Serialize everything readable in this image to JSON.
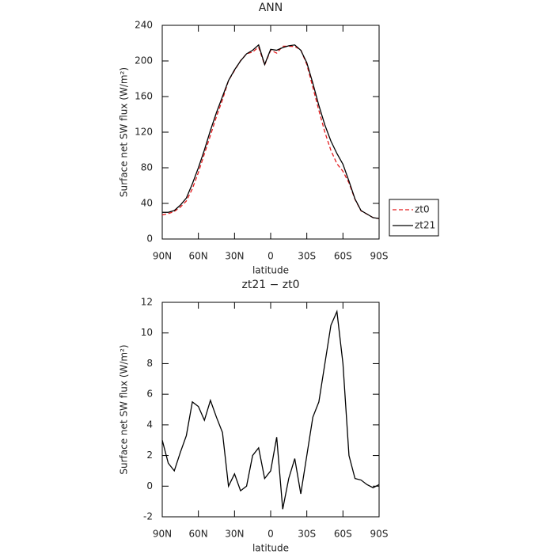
{
  "chart_data": [
    {
      "type": "line",
      "title": "ANN",
      "xlabel": "latitude",
      "ylabel": "Surface net SW flux (W/m²)",
      "x": [
        90,
        85,
        80,
        75,
        70,
        65,
        60,
        55,
        50,
        45,
        40,
        35,
        30,
        25,
        20,
        15,
        10,
        5,
        0,
        -5,
        -10,
        -15,
        -20,
        -25,
        -30,
        -35,
        -40,
        -45,
        -50,
        -55,
        -60,
        -65,
        -70,
        -75,
        -80,
        -85,
        -90
      ],
      "series": [
        {
          "name": "zt0",
          "color": "#e41a1c",
          "line_style": "dashed",
          "values": [
            27,
            28.5,
            31,
            35.8,
            42.7,
            56.5,
            74.8,
            95.7,
            116.4,
            137.5,
            156.5,
            178,
            189.2,
            200.3,
            208,
            210,
            215.5,
            195.5,
            212,
            208.8,
            216.5,
            216.5,
            216.2,
            212.5,
            196,
            170.5,
            144.5,
            120,
            99.5,
            84.6,
            76,
            63,
            44.5,
            31.6,
            27.9,
            24.1,
            22.9
          ]
        },
        {
          "name": "zt21",
          "color": "#000000",
          "line_style": "solid",
          "values": [
            30,
            30,
            32,
            38,
            46,
            62,
            80,
            100,
            122,
            142,
            160,
            178,
            190,
            200,
            208,
            212,
            218,
            196,
            213,
            212,
            215,
            217,
            218,
            212,
            198,
            175,
            150,
            128,
            110,
            96,
            84,
            65,
            45,
            32,
            28,
            24,
            23
          ]
        }
      ],
      "xlim": [
        90,
        -90
      ],
      "xticks": [
        {
          "value": 90,
          "label": "90N"
        },
        {
          "value": 60,
          "label": "60N"
        },
        {
          "value": 30,
          "label": "30N"
        },
        0,
        {
          "value": -30,
          "label": "30S"
        },
        {
          "value": -60,
          "label": "60S"
        },
        {
          "value": -90,
          "label": "90S"
        }
      ],
      "ylim": [
        0,
        240
      ],
      "yticks": [
        0,
        40,
        80,
        120,
        160,
        200,
        240
      ],
      "legend": "outside-right"
    },
    {
      "type": "line",
      "title": "zt21 − zt0",
      "xlabel": "latitude",
      "ylabel": "Surface net SW flux (W/m²)",
      "x": [
        90,
        85,
        80,
        75,
        70,
        65,
        60,
        55,
        50,
        45,
        40,
        35,
        30,
        25,
        20,
        15,
        10,
        5,
        0,
        -5,
        -10,
        -15,
        -20,
        -25,
        -30,
        -35,
        -40,
        -45,
        -50,
        -55,
        -60,
        -65,
        -70,
        -75,
        -80,
        -85,
        -90
      ],
      "series": [
        {
          "color": "#000000",
          "line_style": "solid",
          "values": [
            3,
            1.5,
            1,
            2.2,
            3.3,
            5.5,
            5.2,
            4.3,
            5.6,
            4.5,
            3.5,
            0,
            0.8,
            -0.3,
            0,
            2,
            2.5,
            0.5,
            1,
            3.2,
            -1.5,
            0.5,
            1.8,
            -0.5,
            2,
            4.5,
            5.5,
            8,
            10.5,
            11.4,
            8,
            2,
            0.5,
            0.4,
            0.1,
            -0.1,
            0.1
          ]
        }
      ],
      "xlim": [
        90,
        -90
      ],
      "xticks": [
        {
          "value": 90,
          "label": "90N"
        },
        {
          "value": 60,
          "label": "60N"
        },
        {
          "value": 30,
          "label": "30N"
        },
        0,
        {
          "value": -30,
          "label": "30S"
        },
        {
          "value": -60,
          "label": "60S"
        },
        {
          "value": -90,
          "label": "90S"
        }
      ],
      "ylim": [
        -2,
        12
      ],
      "yticks": [
        -2,
        0,
        2,
        4,
        6,
        8,
        10,
        12
      ]
    }
  ]
}
